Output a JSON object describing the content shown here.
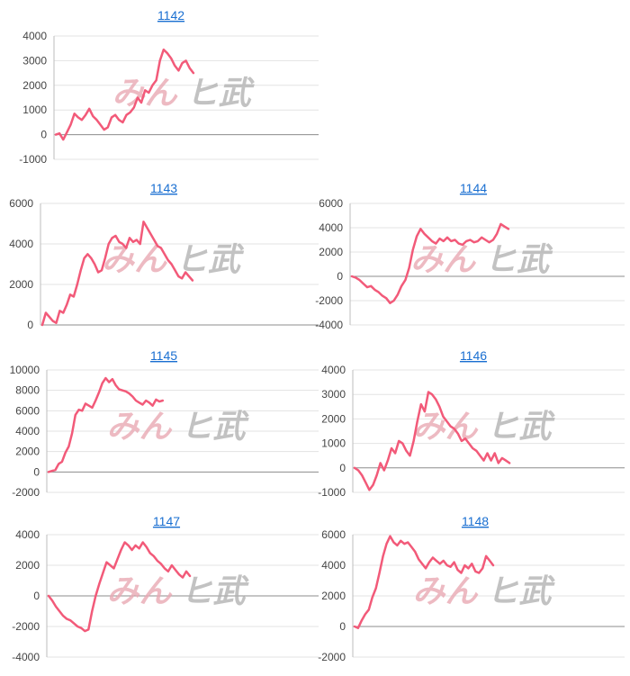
{
  "watermark": {
    "part_a": "みん",
    "part_b": "ヒ武"
  },
  "series_color": "#f25a79",
  "chart_data": [
    {
      "type": "line",
      "title": "1142",
      "ylim": [
        -1000,
        4000
      ],
      "yticks": [
        "4000",
        "3000",
        "2000",
        "1000",
        "0",
        "-1000"
      ],
      "grid": true,
      "values": [
        0,
        50,
        -200,
        100,
        400,
        850,
        700,
        600,
        800,
        1050,
        750,
        600,
        400,
        200,
        300,
        700,
        800,
        600,
        500,
        800,
        900,
        1100,
        1500,
        1300,
        1800,
        1700,
        2000,
        2200,
        3000,
        3450,
        3300,
        3100,
        2800,
        2600,
        2900,
        3000,
        2700,
        2500
      ]
    },
    {
      "type": "line",
      "title": "1143",
      "ylim": [
        0,
        6000
      ],
      "yticks": [
        "6000",
        "4000",
        "2000",
        "0"
      ],
      "grid": true,
      "values": [
        0,
        600,
        400,
        200,
        100,
        700,
        600,
        1000,
        1500,
        1400,
        2000,
        2700,
        3300,
        3500,
        3300,
        3000,
        2600,
        2700,
        3300,
        4000,
        4300,
        4400,
        4100,
        4000,
        3800,
        4300,
        4100,
        4200,
        4000,
        5100,
        4800,
        4500,
        4200,
        3900,
        3800,
        3500,
        3200,
        3000,
        2700,
        2400,
        2300,
        2600,
        2400,
        2200
      ]
    },
    {
      "type": "line",
      "title": "1144",
      "ylim": [
        -4000,
        6000
      ],
      "yticks": [
        "6000",
        "4000",
        "2000",
        "0",
        "-2000",
        "-4000"
      ],
      "grid": true,
      "values": [
        0,
        -100,
        -300,
        -600,
        -900,
        -800,
        -1100,
        -1300,
        -1600,
        -1800,
        -2200,
        -2000,
        -1500,
        -800,
        -300,
        700,
        2200,
        3300,
        3900,
        3500,
        3200,
        2900,
        2700,
        3100,
        2900,
        3200,
        2900,
        3000,
        2700,
        2600,
        2900,
        3000,
        2800,
        2900,
        3200,
        3000,
        2800,
        3000,
        3500,
        4300,
        4100,
        3900
      ]
    },
    {
      "type": "line",
      "title": "1145",
      "ylim": [
        -2000,
        10000
      ],
      "yticks": [
        "10000",
        "8000",
        "6000",
        "4000",
        "2000",
        "0",
        "-2000"
      ],
      "grid": true,
      "values": [
        0,
        100,
        200,
        800,
        1000,
        1900,
        2500,
        3800,
        5600,
        6100,
        6000,
        6700,
        6500,
        6300,
        7000,
        7800,
        8700,
        9200,
        8800,
        9100,
        8500,
        8100,
        8000,
        7900,
        7700,
        7400,
        7000,
        6800,
        6600,
        7000,
        6800,
        6500,
        7100,
        6900,
        7000
      ]
    },
    {
      "type": "line",
      "title": "1146",
      "ylim": [
        -1000,
        4000
      ],
      "yticks": [
        "4000",
        "3000",
        "2000",
        "1000",
        "0",
        "-1000"
      ],
      "grid": true,
      "values": [
        0,
        -100,
        -300,
        -600,
        -900,
        -700,
        -300,
        200,
        -100,
        300,
        800,
        600,
        1100,
        1000,
        700,
        500,
        1100,
        1900,
        2600,
        2300,
        3100,
        3000,
        2800,
        2500,
        2100,
        1900,
        1700,
        1600,
        1400,
        1100,
        1200,
        1000,
        800,
        700,
        500,
        300,
        600,
        300,
        600,
        200,
        400,
        300,
        200
      ]
    },
    {
      "type": "line",
      "title": "1147",
      "ylim": [
        -4000,
        4000
      ],
      "yticks": [
        "4000",
        "2000",
        "0",
        "-2000",
        "-4000"
      ],
      "grid": true,
      "values": [
        0,
        -300,
        -700,
        -1000,
        -1300,
        -1500,
        -1600,
        -1800,
        -2000,
        -2100,
        -2300,
        -2200,
        -1000,
        0,
        800,
        1500,
        2200,
        2000,
        1800,
        2400,
        3000,
        3500,
        3300,
        3000,
        3300,
        3100,
        3500,
        3200,
        2800,
        2600,
        2300,
        2100,
        1800,
        1600,
        2000,
        1700,
        1400,
        1200,
        1600,
        1300
      ]
    },
    {
      "type": "line",
      "title": "1148",
      "ylim": [
        -2000,
        6000
      ],
      "yticks": [
        "6000",
        "4000",
        "2000",
        "0",
        "-2000"
      ],
      "grid": true,
      "values": [
        0,
        -100,
        400,
        800,
        1100,
        1900,
        2500,
        3500,
        4600,
        5400,
        5900,
        5500,
        5300,
        5600,
        5400,
        5500,
        5200,
        4900,
        4400,
        4100,
        3800,
        4200,
        4500,
        4300,
        4100,
        4300,
        4000,
        3900,
        4200,
        3700,
        3500,
        4000,
        3800,
        4100,
        3600,
        3500,
        3800,
        4600,
        4300,
        4000
      ]
    }
  ]
}
